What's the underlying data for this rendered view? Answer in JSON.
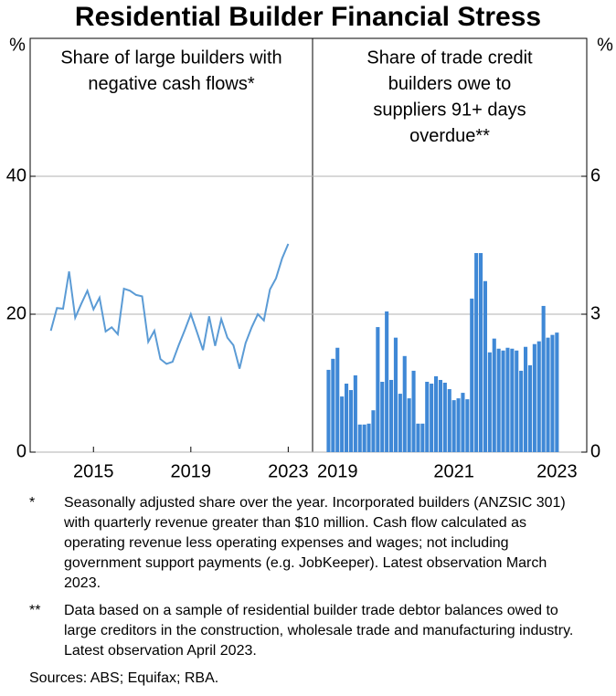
{
  "title": "Residential Builder Financial Stress",
  "chart_data": [
    {
      "type": "line",
      "subtitle": [
        "Share of large builders with",
        "negative cash flows*"
      ],
      "ylabel": "%",
      "y_axis_side": "left",
      "x": [
        2013.25,
        2013.5,
        2013.75,
        2014,
        2014.25,
        2014.5,
        2014.75,
        2015,
        2015.25,
        2015.5,
        2015.75,
        2016,
        2016.25,
        2016.5,
        2016.75,
        2017,
        2017.25,
        2017.5,
        2017.75,
        2018,
        2018.25,
        2018.5,
        2018.75,
        2019,
        2019.25,
        2019.5,
        2019.75,
        2020,
        2020.25,
        2020.5,
        2020.75,
        2021,
        2021.25,
        2021.5,
        2021.75,
        2022,
        2022.25,
        2022.5,
        2022.75,
        2023
      ],
      "series": [
        {
          "color": "#5b9bd5",
          "values": [
            17.6,
            20.9,
            20.8,
            26.2,
            19.5,
            21.5,
            23.4,
            20.7,
            22.4,
            17.5,
            18.1,
            17.1,
            23.7,
            23.4,
            22.8,
            22.6,
            16.0,
            17.6,
            13.5,
            12.8,
            13.1,
            15.5,
            17.7,
            20.0,
            17.4,
            14.8,
            19.7,
            15.4,
            19.3,
            16.6,
            15.5,
            12.1,
            15.8,
            18.1,
            20.0,
            19.1,
            23.6,
            25.2,
            28.1,
            30.2
          ]
        }
      ],
      "xlim": [
        2012.4,
        2024
      ],
      "xticks": [
        2015,
        2019,
        2023
      ],
      "ylim": [
        0,
        60
      ],
      "yticks": [
        0,
        20,
        40
      ],
      "grid": true
    },
    {
      "type": "bar",
      "subtitle": [
        "Share of trade credit",
        "builders owe to",
        "suppliers 91+ days",
        "overdue**"
      ],
      "ylabel": "%",
      "y_axis_side": "right",
      "categories": [
        null,
        null,
        "2019",
        null,
        null,
        null,
        null,
        null,
        null,
        null,
        null,
        null,
        null,
        null,
        null,
        null,
        null,
        null,
        null,
        null,
        null,
        null,
        null,
        null,
        null,
        null,
        null,
        null,
        "2021",
        null,
        null,
        null,
        null,
        null,
        null,
        null,
        null,
        null,
        null,
        null,
        null,
        null,
        null,
        null,
        null,
        null,
        null,
        null,
        null,
        null,
        null,
        "2023"
      ],
      "series": [
        {
          "color": "#3f88d6",
          "values": [
            1.79,
            2.03,
            2.27,
            1.21,
            1.49,
            1.35,
            1.67,
            0.6,
            0.6,
            0.62,
            0.91,
            2.72,
            1.53,
            3.06,
            1.57,
            2.49,
            1.27,
            2.09,
            1.17,
            1.77,
            0.62,
            0.62,
            1.53,
            1.49,
            1.65,
            1.57,
            1.51,
            1.37,
            1.13,
            1.17,
            1.29,
            1.15,
            3.34,
            4.33,
            4.33,
            3.72,
            2.17,
            2.47,
            2.25,
            2.21,
            2.27,
            2.25,
            2.21,
            1.77,
            2.29,
            1.89,
            2.35,
            2.41,
            3.18,
            2.49,
            2.55,
            2.6
          ]
        }
      ],
      "ylim": [
        0,
        9
      ],
      "yticks": [
        0,
        3,
        6
      ],
      "grid": true
    }
  ],
  "notes": [
    {
      "marker": "*",
      "text": "Seasonally adjusted share over the year. Incorporated builders (ANZSIC 301) with quarterly revenue greater than $10 million. Cash flow calculated as operating revenue less operating expenses and wages; not including government support payments (e.g. JobKeeper). Latest observation March 2023."
    },
    {
      "marker": "**",
      "text": "Data based on a sample of residential builder trade debtor balances owed to large creditors in the construction, wholesale trade and manufacturing industry. Latest observation April 2023."
    }
  ],
  "sources": "Sources: ABS; Equifax; RBA."
}
